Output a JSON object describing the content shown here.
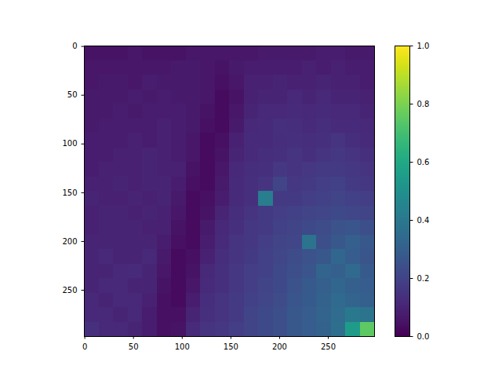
{
  "chart_data": {
    "type": "heatmap",
    "color": "viridis",
    "xlim": [
      -0.5,
      297.5
    ],
    "ylim": [
      297.5,
      -0.5
    ],
    "xticks": [
      0,
      50,
      100,
      150,
      200,
      250
    ],
    "yticks": [
      0,
      50,
      100,
      150,
      200,
      250
    ],
    "colorbar": {
      "range": [
        0,
        1
      ],
      "ticks": [
        {
          "value": 0,
          "label": "0.0"
        },
        0.2,
        0.4,
        0.6,
        0.8,
        {
          "value": 1,
          "label": "1.0"
        }
      ]
    },
    "cells": [
      [
        0.05,
        0.05,
        0.05,
        0.06,
        0.05,
        0.05,
        0.05,
        0.06,
        0.06,
        0.06,
        0.06,
        0.06,
        0.07,
        0.07,
        0.07,
        0.07,
        0.08,
        0.08,
        0.07,
        0.07
      ],
      [
        0.06,
        0.06,
        0.06,
        0.06,
        0.06,
        0.06,
        0.07,
        0.07,
        0.06,
        0.05,
        0.07,
        0.08,
        0.08,
        0.08,
        0.08,
        0.09,
        0.08,
        0.09,
        0.08,
        0.08
      ],
      [
        0.06,
        0.07,
        0.07,
        0.06,
        0.08,
        0.07,
        0.07,
        0.07,
        0.06,
        0.04,
        0.06,
        0.09,
        0.09,
        0.1,
        0.09,
        0.09,
        0.1,
        0.09,
        0.09,
        0.08
      ],
      [
        0.07,
        0.07,
        0.07,
        0.08,
        0.07,
        0.08,
        0.07,
        0.07,
        0.06,
        0.03,
        0.05,
        0.09,
        0.1,
        0.1,
        0.11,
        0.1,
        0.11,
        0.1,
        0.1,
        0.09
      ],
      [
        0.07,
        0.07,
        0.08,
        0.07,
        0.08,
        0.08,
        0.08,
        0.07,
        0.05,
        0.03,
        0.06,
        0.1,
        0.11,
        0.11,
        0.12,
        0.11,
        0.12,
        0.11,
        0.11,
        0.1
      ],
      [
        0.07,
        0.08,
        0.08,
        0.08,
        0.08,
        0.09,
        0.08,
        0.07,
        0.04,
        0.03,
        0.07,
        0.11,
        0.12,
        0.14,
        0.13,
        0.12,
        0.13,
        0.12,
        0.12,
        0.11
      ],
      [
        0.08,
        0.08,
        0.08,
        0.09,
        0.08,
        0.09,
        0.08,
        0.06,
        0.03,
        0.04,
        0.09,
        0.12,
        0.12,
        0.13,
        0.14,
        0.13,
        0.14,
        0.15,
        0.13,
        0.12
      ],
      [
        0.08,
        0.08,
        0.09,
        0.09,
        0.1,
        0.09,
        0.08,
        0.06,
        0.03,
        0.05,
        0.1,
        0.12,
        0.13,
        0.14,
        0.15,
        0.14,
        0.15,
        0.16,
        0.15,
        0.14
      ],
      [
        0.08,
        0.09,
        0.09,
        0.09,
        0.1,
        0.09,
        0.09,
        0.05,
        0.03,
        0.06,
        0.11,
        0.13,
        0.14,
        0.16,
        0.15,
        0.16,
        0.17,
        0.17,
        0.16,
        0.15
      ],
      [
        0.09,
        0.09,
        0.1,
        0.09,
        0.1,
        0.1,
        0.08,
        0.04,
        0.03,
        0.07,
        0.12,
        0.14,
        0.15,
        0.2,
        0.16,
        0.17,
        0.18,
        0.19,
        0.17,
        0.16
      ],
      [
        0.1,
        0.09,
        0.09,
        0.1,
        0.09,
        0.1,
        0.07,
        0.03,
        0.04,
        0.08,
        0.12,
        0.14,
        0.42,
        0.17,
        0.17,
        0.18,
        0.19,
        0.2,
        0.19,
        0.18
      ],
      [
        0.09,
        0.1,
        0.1,
        0.09,
        0.1,
        0.09,
        0.06,
        0.03,
        0.05,
        0.1,
        0.13,
        0.15,
        0.17,
        0.18,
        0.19,
        0.2,
        0.21,
        0.22,
        0.21,
        0.2
      ],
      [
        0.09,
        0.1,
        0.1,
        0.1,
        0.09,
        0.09,
        0.05,
        0.03,
        0.07,
        0.11,
        0.14,
        0.16,
        0.17,
        0.19,
        0.2,
        0.22,
        0.23,
        0.25,
        0.26,
        0.24
      ],
      [
        0.1,
        0.1,
        0.1,
        0.1,
        0.1,
        0.08,
        0.04,
        0.03,
        0.08,
        0.12,
        0.15,
        0.16,
        0.18,
        0.2,
        0.21,
        0.38,
        0.24,
        0.27,
        0.3,
        0.27
      ],
      [
        0.1,
        0.11,
        0.1,
        0.1,
        0.11,
        0.07,
        0.03,
        0.04,
        0.09,
        0.13,
        0.15,
        0.17,
        0.19,
        0.21,
        0.23,
        0.25,
        0.27,
        0.33,
        0.29,
        0.26
      ],
      [
        0.1,
        0.1,
        0.11,
        0.12,
        0.1,
        0.06,
        0.03,
        0.05,
        0.11,
        0.14,
        0.16,
        0.18,
        0.19,
        0.22,
        0.24,
        0.26,
        0.32,
        0.3,
        0.34,
        0.28
      ],
      [
        0.1,
        0.11,
        0.11,
        0.1,
        0.1,
        0.05,
        0.03,
        0.06,
        0.12,
        0.14,
        0.16,
        0.18,
        0.2,
        0.22,
        0.25,
        0.28,
        0.3,
        0.33,
        0.3,
        0.29
      ],
      [
        0.11,
        0.1,
        0.11,
        0.11,
        0.09,
        0.04,
        0.03,
        0.08,
        0.13,
        0.15,
        0.17,
        0.19,
        0.21,
        0.23,
        0.26,
        0.28,
        0.31,
        0.34,
        0.32,
        0.3
      ],
      [
        0.11,
        0.11,
        0.1,
        0.11,
        0.08,
        0.04,
        0.04,
        0.1,
        0.14,
        0.15,
        0.17,
        0.2,
        0.22,
        0.24,
        0.27,
        0.29,
        0.32,
        0.35,
        0.4,
        0.38
      ],
      [
        0.14,
        0.11,
        0.11,
        0.1,
        0.08,
        0.04,
        0.05,
        0.12,
        0.15,
        0.16,
        0.18,
        0.2,
        0.22,
        0.24,
        0.27,
        0.29,
        0.31,
        0.36,
        0.55,
        0.75
      ]
    ]
  }
}
